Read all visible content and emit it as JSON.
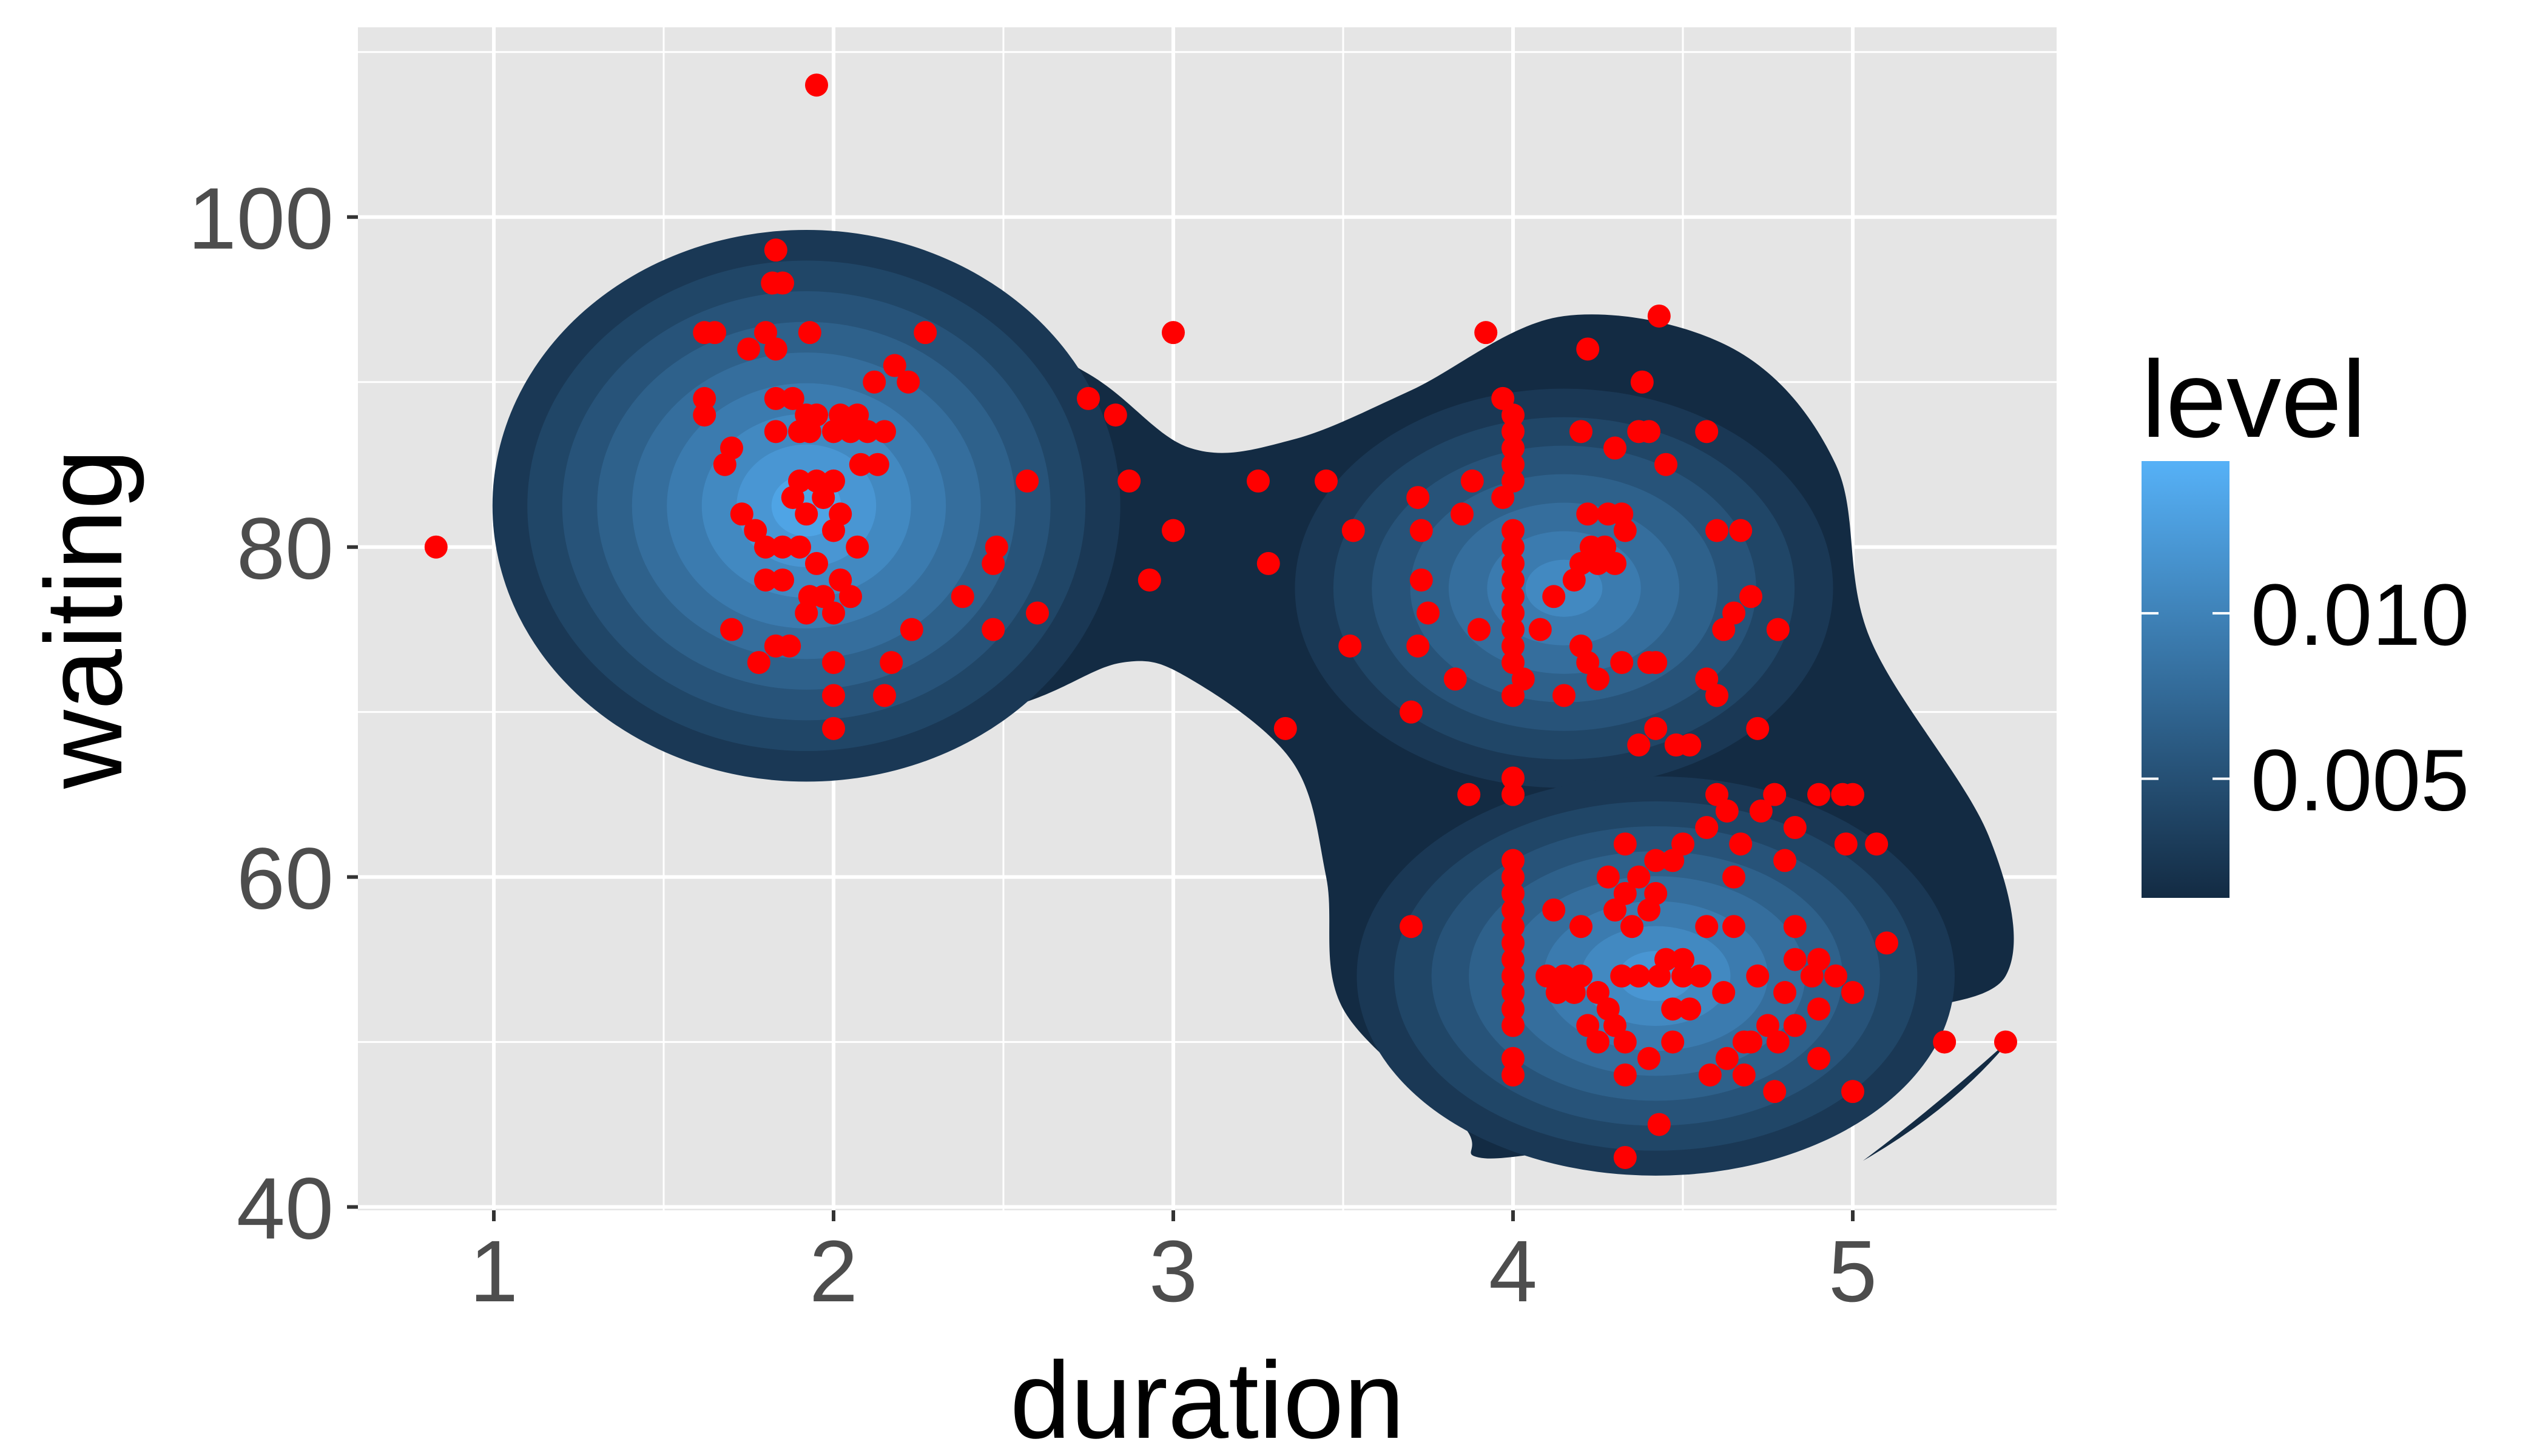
{
  "chart_data": {
    "type": "scatter",
    "subtype": "density-2d-filled-with-points",
    "xlabel": "duration",
    "ylabel": "waiting",
    "xlim": [
      0.6,
      5.6
    ],
    "ylim": [
      39.8,
      111.5
    ],
    "x_ticks": [
      1,
      2,
      3,
      4,
      5
    ],
    "y_ticks": [
      40,
      60,
      80,
      100
    ],
    "x_tick_labels": [
      "1",
      "2",
      "3",
      "4",
      "5"
    ],
    "y_tick_labels": [
      "40",
      "60",
      "80",
      "100"
    ],
    "grid": true,
    "legend": {
      "title": "level",
      "placement": "right",
      "type": "colorbar",
      "ticks": [
        0.005,
        0.01
      ],
      "tick_labels": [
        "0.005",
        "0.010"
      ],
      "range": [
        0.0014,
        0.0146
      ],
      "colors": [
        "#132B43",
        "#56B1F7"
      ]
    },
    "colors": {
      "panel": "#E5E5E5",
      "grid": "#FFFFFF",
      "points": "#FF0000",
      "density_low": "#132B43",
      "density_high": "#56B1F7"
    },
    "density_clusters": [
      {
        "center": [
          1.92,
          82.5
        ],
        "sx": 0.42,
        "sy": 7.6,
        "levels": 9
      },
      {
        "center": [
          4.15,
          77.5
        ],
        "sx": 0.36,
        "sy": 5.5,
        "levels": 7
      },
      {
        "center": [
          4.42,
          54.0
        ],
        "sx": 0.4,
        "sy": 5.5,
        "levels": 8
      }
    ],
    "density_outline": [
      [
        1.8,
        96.5
      ],
      [
        2.3,
        95.0
      ],
      [
        2.75,
        90.5
      ],
      [
        3.05,
        86.0
      ],
      [
        3.35,
        86.5
      ],
      [
        3.7,
        89.5
      ],
      [
        4.15,
        94.0
      ],
      [
        4.65,
        92.0
      ],
      [
        4.95,
        85.0
      ],
      [
        5.05,
        74.5
      ],
      [
        5.4,
        62.5
      ],
      [
        5.45,
        54.0
      ],
      [
        5.1,
        51.5
      ],
      [
        5.05,
        49.0
      ],
      [
        4.7,
        44.0
      ],
      [
        4.2,
        43.5
      ],
      [
        3.9,
        43.0
      ],
      [
        3.85,
        45.0
      ],
      [
        3.5,
        52.0
      ],
      [
        3.45,
        60.0
      ],
      [
        3.35,
        67.0
      ],
      [
        3.05,
        72.0
      ],
      [
        2.85,
        73.0
      ],
      [
        2.55,
        70.5
      ],
      [
        2.0,
        67.5
      ],
      [
        1.5,
        69.0
      ],
      [
        1.15,
        77.0
      ],
      [
        1.15,
        86.0
      ],
      [
        1.4,
        93.5
      ]
    ],
    "points": [
      [
        0.83,
        80
      ],
      [
        1.95,
        108
      ],
      [
        1.83,
        98
      ],
      [
        1.82,
        96
      ],
      [
        1.85,
        96
      ],
      [
        1.62,
        93
      ],
      [
        1.65,
        93
      ],
      [
        1.8,
        93
      ],
      [
        1.93,
        93
      ],
      [
        2.27,
        93
      ],
      [
        1.75,
        92
      ],
      [
        1.83,
        92
      ],
      [
        2.18,
        91
      ],
      [
        1.62,
        89
      ],
      [
        1.62,
        88
      ],
      [
        1.83,
        89
      ],
      [
        1.88,
        89
      ],
      [
        1.92,
        88
      ],
      [
        1.95,
        88
      ],
      [
        2.02,
        88
      ],
      [
        2.07,
        88
      ],
      [
        1.9,
        87
      ],
      [
        1.93,
        87
      ],
      [
        2.0,
        87
      ],
      [
        2.05,
        87
      ],
      [
        1.83,
        87
      ],
      [
        2.1,
        87
      ],
      [
        2.15,
        87
      ],
      [
        2.08,
        85
      ],
      [
        2.13,
        85
      ],
      [
        1.7,
        86
      ],
      [
        1.68,
        85
      ],
      [
        1.9,
        84
      ],
      [
        1.95,
        84
      ],
      [
        2.0,
        84
      ],
      [
        1.97,
        83
      ],
      [
        1.88,
        83
      ],
      [
        1.92,
        82
      ],
      [
        2.02,
        82
      ],
      [
        2.0,
        81
      ],
      [
        1.8,
        80
      ],
      [
        1.85,
        80
      ],
      [
        2.07,
        80
      ],
      [
        1.73,
        82
      ],
      [
        1.77,
        81
      ],
      [
        1.9,
        80
      ],
      [
        1.95,
        79
      ],
      [
        2.02,
        78
      ],
      [
        1.97,
        77
      ],
      [
        2.05,
        77
      ],
      [
        1.8,
        78
      ],
      [
        1.85,
        78
      ],
      [
        1.93,
        77
      ],
      [
        1.92,
        76
      ],
      [
        2.0,
        76
      ],
      [
        2.22,
        90
      ],
      [
        2.12,
        90
      ],
      [
        2.57,
        84
      ],
      [
        2.48,
        80
      ],
      [
        2.47,
        79
      ],
      [
        2.38,
        77
      ],
      [
        2.23,
        75
      ],
      [
        2.6,
        76
      ],
      [
        2.47,
        75
      ],
      [
        1.7,
        75
      ],
      [
        1.83,
        74
      ],
      [
        1.87,
        74
      ],
      [
        1.78,
        73
      ],
      [
        2.0,
        73
      ],
      [
        2.17,
        73
      ],
      [
        2.0,
        71
      ],
      [
        2.15,
        71
      ],
      [
        2.0,
        69
      ],
      [
        2.75,
        89
      ],
      [
        2.83,
        88
      ],
      [
        2.87,
        84
      ],
      [
        3.0,
        93
      ],
      [
        3.0,
        81
      ],
      [
        2.93,
        78
      ],
      [
        3.25,
        84
      ],
      [
        3.45,
        84
      ],
      [
        3.28,
        79
      ],
      [
        3.53,
        81
      ],
      [
        3.52,
        74
      ],
      [
        3.33,
        69
      ],
      [
        3.92,
        93
      ],
      [
        3.97,
        89
      ],
      [
        4.0,
        88
      ],
      [
        4.0,
        87
      ],
      [
        4.0,
        86
      ],
      [
        4.0,
        85
      ],
      [
        4.0,
        84
      ],
      [
        3.88,
        84
      ],
      [
        3.97,
        83
      ],
      [
        3.72,
        83
      ],
      [
        3.85,
        82
      ],
      [
        3.73,
        81
      ],
      [
        4.0,
        81
      ],
      [
        4.0,
        80
      ],
      [
        4.0,
        79
      ],
      [
        4.0,
        78
      ],
      [
        3.73,
        78
      ],
      [
        4.0,
        77
      ],
      [
        4.0,
        76
      ],
      [
        4.0,
        75
      ],
      [
        3.9,
        75
      ],
      [
        3.75,
        76
      ],
      [
        3.72,
        74
      ],
      [
        4.0,
        74
      ],
      [
        4.0,
        73
      ],
      [
        3.83,
        72
      ],
      [
        4.03,
        72
      ],
      [
        4.0,
        71
      ],
      [
        4.15,
        71
      ],
      [
        3.7,
        70
      ],
      [
        4.18,
        78
      ],
      [
        4.22,
        82
      ],
      [
        4.27,
        80
      ],
      [
        4.25,
        79
      ],
      [
        4.2,
        79
      ],
      [
        4.3,
        79
      ],
      [
        4.23,
        80
      ],
      [
        4.12,
        77
      ],
      [
        4.08,
        75
      ],
      [
        4.2,
        74
      ],
      [
        4.22,
        73
      ],
      [
        4.25,
        72
      ],
      [
        4.32,
        73
      ],
      [
        4.4,
        73
      ],
      [
        4.42,
        73
      ],
      [
        4.22,
        92
      ],
      [
        4.43,
        94
      ],
      [
        4.38,
        90
      ],
      [
        4.2,
        87
      ],
      [
        4.37,
        87
      ],
      [
        4.4,
        87
      ],
      [
        4.3,
        86
      ],
      [
        4.45,
        85
      ],
      [
        4.57,
        87
      ],
      [
        4.28,
        82
      ],
      [
        4.32,
        82
      ],
      [
        4.6,
        81
      ],
      [
        4.33,
        81
      ],
      [
        4.67,
        81
      ],
      [
        4.7,
        77
      ],
      [
        4.65,
        76
      ],
      [
        4.62,
        75
      ],
      [
        4.78,
        75
      ],
      [
        4.57,
        72
      ],
      [
        4.6,
        71
      ],
      [
        4.72,
        69
      ],
      [
        4.42,
        69
      ],
      [
        4.37,
        68
      ],
      [
        4.48,
        68
      ],
      [
        4.52,
        68
      ],
      [
        3.87,
        65
      ],
      [
        4.0,
        66
      ],
      [
        4.0,
        65
      ],
      [
        4.6,
        65
      ],
      [
        4.63,
        64
      ],
      [
        4.77,
        65
      ],
      [
        4.73,
        64
      ],
      [
        4.9,
        65
      ],
      [
        4.97,
        65
      ],
      [
        5.0,
        65
      ],
      [
        4.57,
        63
      ],
      [
        4.83,
        63
      ],
      [
        4.98,
        62
      ],
      [
        5.07,
        62
      ],
      [
        4.0,
        61
      ],
      [
        4.0,
        60
      ],
      [
        4.0,
        59
      ],
      [
        4.0,
        58
      ],
      [
        4.0,
        57
      ],
      [
        4.0,
        56
      ],
      [
        4.0,
        55
      ],
      [
        4.0,
        54
      ],
      [
        4.0,
        53
      ],
      [
        4.0,
        52
      ],
      [
        4.0,
        51
      ],
      [
        4.0,
        49
      ],
      [
        4.0,
        48
      ],
      [
        3.7,
        57
      ],
      [
        4.33,
        62
      ],
      [
        4.5,
        62
      ],
      [
        4.47,
        61
      ],
      [
        4.28,
        60
      ],
      [
        4.37,
        60
      ],
      [
        4.42,
        61
      ],
      [
        4.33,
        59
      ],
      [
        4.42,
        59
      ],
      [
        4.67,
        62
      ],
      [
        4.8,
        61
      ],
      [
        4.65,
        60
      ],
      [
        4.3,
        58
      ],
      [
        4.2,
        57
      ],
      [
        4.35,
        57
      ],
      [
        4.4,
        58
      ],
      [
        4.57,
        57
      ],
      [
        4.65,
        57
      ],
      [
        4.83,
        57
      ],
      [
        4.83,
        55
      ],
      [
        4.88,
        54
      ],
      [
        4.9,
        55
      ],
      [
        5.1,
        56
      ],
      [
        4.18,
        53
      ],
      [
        4.13,
        53
      ],
      [
        4.1,
        54
      ],
      [
        4.15,
        54
      ],
      [
        4.2,
        54
      ],
      [
        4.25,
        53
      ],
      [
        4.45,
        55
      ],
      [
        4.5,
        54
      ],
      [
        4.5,
        55
      ],
      [
        4.55,
        54
      ],
      [
        4.43,
        54
      ],
      [
        4.37,
        54
      ],
      [
        4.32,
        54
      ],
      [
        4.28,
        52
      ],
      [
        4.22,
        51
      ],
      [
        4.3,
        51
      ],
      [
        4.47,
        52
      ],
      [
        4.52,
        52
      ],
      [
        4.62,
        53
      ],
      [
        4.72,
        54
      ],
      [
        4.8,
        53
      ],
      [
        4.95,
        54
      ],
      [
        5.0,
        53
      ],
      [
        4.9,
        52
      ],
      [
        4.78,
        50
      ],
      [
        4.75,
        51
      ],
      [
        4.83,
        51
      ],
      [
        4.7,
        50
      ],
      [
        4.25,
        50
      ],
      [
        4.33,
        50
      ],
      [
        4.4,
        49
      ],
      [
        4.47,
        50
      ],
      [
        4.63,
        49
      ],
      [
        4.68,
        48
      ],
      [
        4.9,
        49
      ],
      [
        4.77,
        47
      ],
      [
        5.0,
        47
      ],
      [
        4.33,
        48
      ],
      [
        4.43,
        45
      ],
      [
        4.33,
        43
      ],
      [
        5.27,
        50
      ],
      [
        5.45,
        50
      ],
      [
        4.68,
        50
      ],
      [
        4.58,
        48
      ],
      [
        4.12,
        58
      ]
    ]
  }
}
